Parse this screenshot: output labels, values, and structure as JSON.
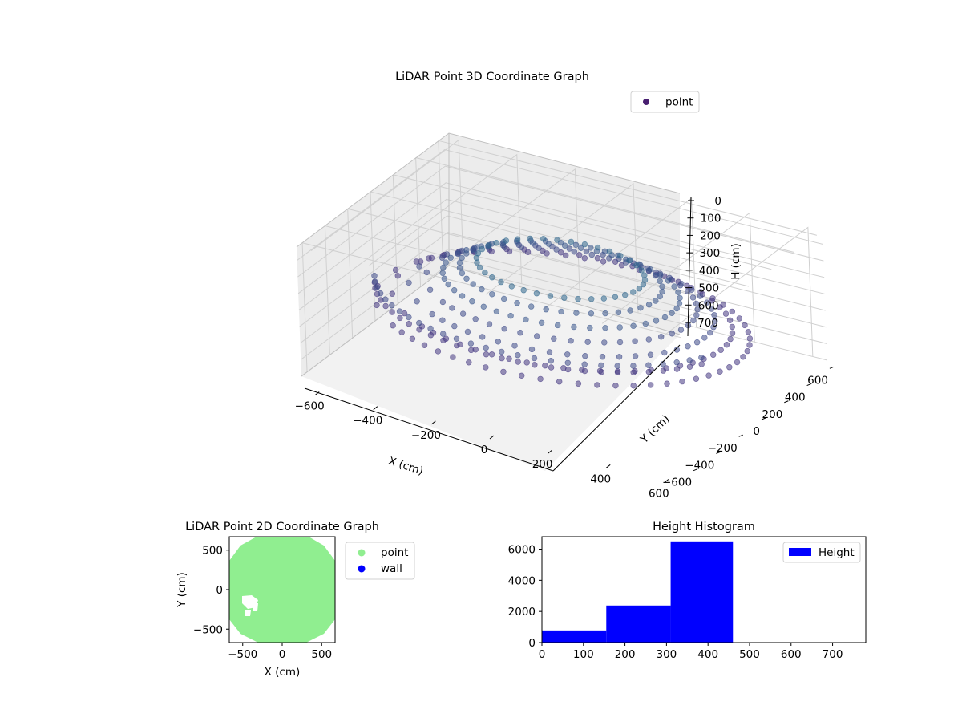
{
  "chart_data": [
    {
      "type": "scatter",
      "title": "LiDAR Point 3D Coordinate Graph",
      "xlabel": "X (cm)",
      "ylabel": "Y (cm)",
      "zlabel": "H (cm)",
      "xlim": [
        -650,
        650
      ],
      "ylim": [
        -650,
        650
      ],
      "zlim": [
        0,
        780
      ],
      "z_inverted": true,
      "xticks": [
        -600,
        -400,
        -200,
        0,
        200,
        400,
        600
      ],
      "yticks": [
        -600,
        -400,
        -200,
        0,
        200,
        400,
        600
      ],
      "zticks": [
        0,
        100,
        200,
        300,
        400,
        500,
        600,
        700
      ],
      "legend": [
        {
          "name": "point",
          "color": "#481f70"
        }
      ],
      "legend_position": "top-right",
      "grid": true,
      "series": [
        {
          "name": "point",
          "description_points": [
            {
              "x": 560,
              "y": 200,
              "h": 300
            },
            {
              "x": 300,
              "y": 500,
              "h": 300
            },
            {
              "x": -200,
              "y": 550,
              "h": 300
            },
            {
              "x": -500,
              "y": 250,
              "h": 300
            },
            {
              "x": -450,
              "y": -200,
              "h": 350
            },
            {
              "x": 0,
              "y": -550,
              "h": 420
            },
            {
              "x": 400,
              "y": -400,
              "h": 420
            }
          ]
        }
      ]
    },
    {
      "type": "scatter",
      "title": "LiDAR Point 2D Coordinate Graph",
      "xlabel": "X (cm)",
      "ylabel": "Y (cm)",
      "xlim": [
        -670,
        670
      ],
      "ylim": [
        -670,
        670
      ],
      "xticks": [
        -500,
        0,
        500
      ],
      "yticks": [
        -500,
        0,
        500
      ],
      "legend": [
        {
          "name": "point",
          "color": "#90ee90"
        },
        {
          "name": "wall",
          "color": "#0000ff"
        }
      ],
      "legend_position": "outside-right"
    },
    {
      "type": "bar",
      "title": "Height Histogram",
      "bins": [
        [
          0,
          155
        ],
        [
          155,
          310
        ],
        [
          310,
          460
        ],
        [
          460,
          615
        ],
        [
          615,
          770
        ]
      ],
      "values": [
        780,
        2380,
        6500,
        0,
        0
      ],
      "xlim": [
        0,
        780
      ],
      "ylim": [
        0,
        6800
      ],
      "xticks": [
        0,
        100,
        200,
        300,
        400,
        500,
        600,
        700
      ],
      "yticks": [
        0,
        2000,
        4000,
        6000
      ],
      "legend": [
        {
          "name": "Height",
          "color": "#0000ff"
        }
      ],
      "legend_position": "top-right"
    }
  ]
}
